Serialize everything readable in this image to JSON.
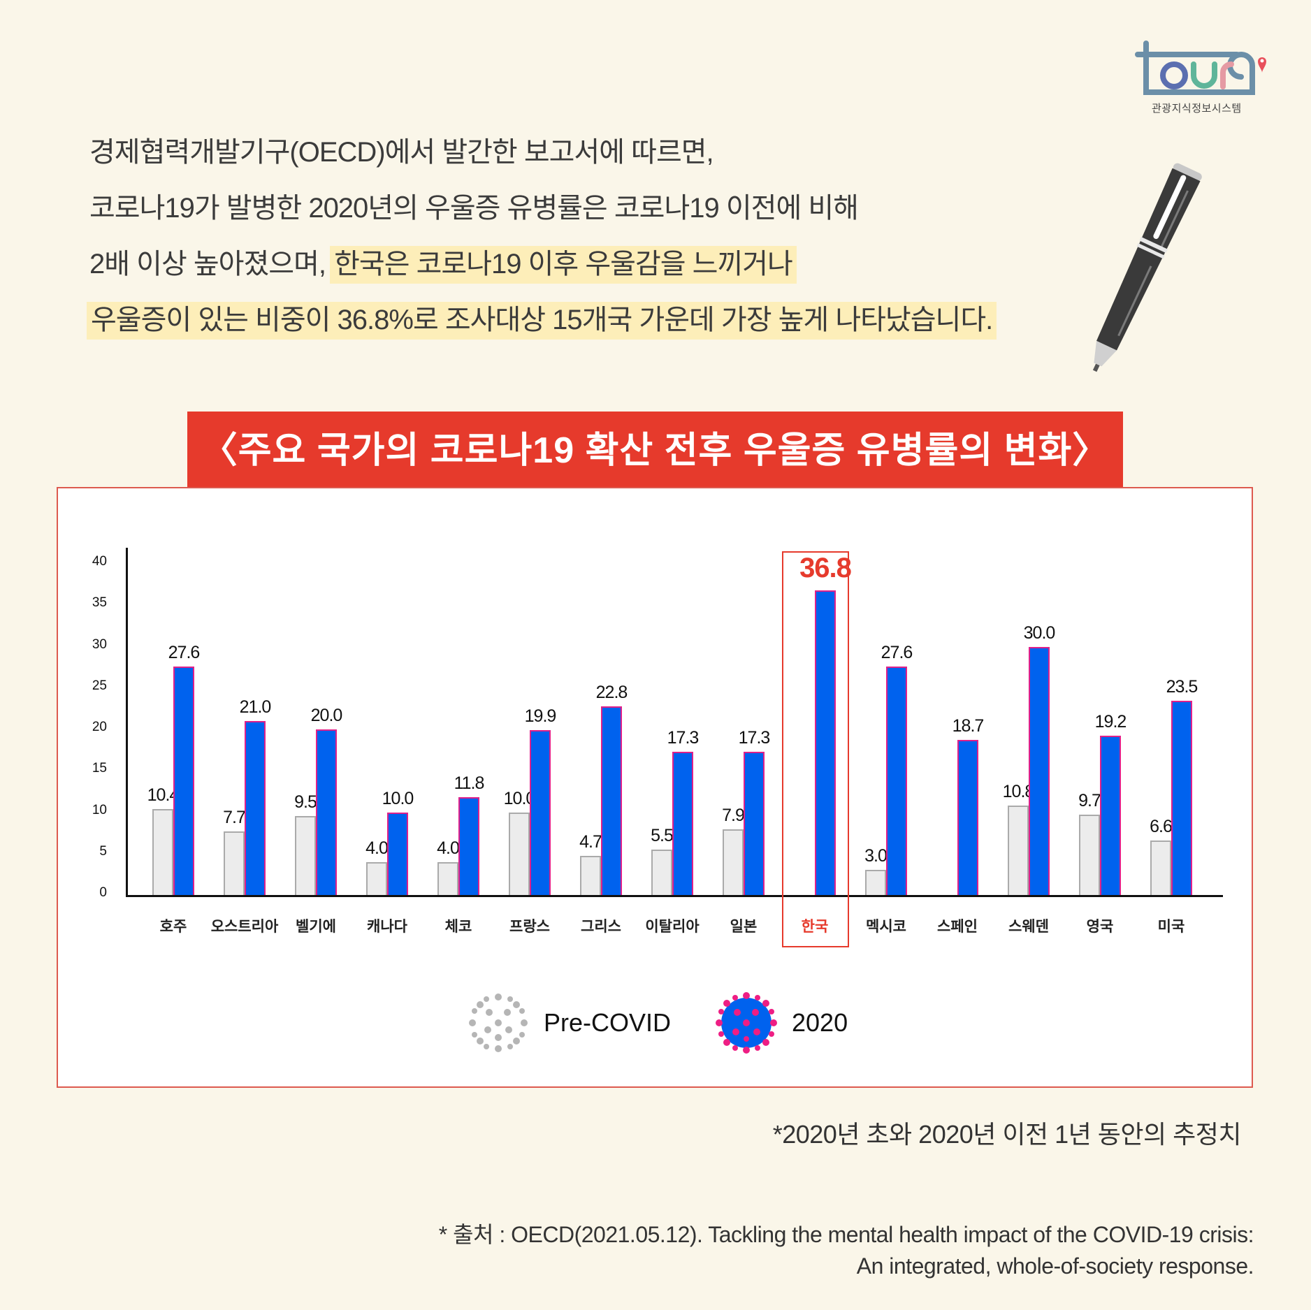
{
  "logo": {
    "text": "tour9",
    "subtitle": "관광지식정보시스템",
    "colors": {
      "frame": "#6b8fa8",
      "o": "#5b6fb0",
      "u": "#5fb59a",
      "r": "#e59aa3",
      "pin": "#e8505b"
    }
  },
  "intro": {
    "lines": [
      "경제협력개발기구(OECD)에서 발간한 보고서에 따르면,",
      "코로나19가 발병한 2020년의 우울증 유병률은 코로나19 이전에 비해",
      "2배 이상 높아졌으며, ",
      "한국은 코로나19 이후 우울감을 느끼거나",
      "우울증이 있는 비중이 36.8%로 조사대상 15개국 가운데 가장 높게 나타났습니다."
    ],
    "highlight_color": "#fdeeb9"
  },
  "chart_header": {
    "title": "〈주요 국가의 코로나19 확산 전후 우울증 유병률의 변화〉",
    "bg_color": "#e63a2c"
  },
  "chart_data": {
    "type": "bar",
    "title": "〈주요 국가의 코로나19 확산 전후 우울증 유병률의 변화〉",
    "xlabel": "",
    "ylabel": "",
    "ylim": [
      0,
      40
    ],
    "yticks": [
      0,
      5,
      10,
      15,
      20,
      25,
      30,
      35,
      40
    ],
    "grid": false,
    "legend_position": "bottom",
    "categories": [
      "호주",
      "오스트리아",
      "벨기에",
      "캐나다",
      "체코",
      "프랑스",
      "그리스",
      "이탈리아",
      "일본",
      "한국",
      "멕시코",
      "스페인",
      "스웨덴",
      "영국",
      "미국"
    ],
    "series": [
      {
        "name": "Pre-COVID",
        "color": "#ececec",
        "values": [
          10.4,
          7.7,
          9.5,
          4.0,
          4.0,
          10.0,
          4.7,
          5.5,
          7.9,
          null,
          3.0,
          null,
          10.8,
          9.7,
          6.6
        ]
      },
      {
        "name": "2020",
        "color": "#0062ee",
        "values": [
          27.6,
          21.0,
          20.0,
          10.0,
          11.8,
          19.9,
          22.8,
          17.3,
          17.3,
          36.8,
          27.6,
          18.7,
          30.0,
          19.2,
          23.5
        ]
      }
    ],
    "value_labels": {
      "pre": [
        "10.4",
        "7.7",
        "9.5",
        "4.0",
        "4.0",
        "10.0",
        "4.7",
        "5.5",
        "7.9",
        "",
        "3.0",
        "",
        "10.8",
        "9.7",
        "6.6"
      ],
      "y2020": [
        "27.6",
        "21.0",
        "20.0",
        "10.0",
        "11.8",
        "19.9",
        "22.8",
        "17.3",
        "17.3",
        "36.8",
        "27.6",
        "18.7",
        "30.0",
        "19.2",
        "23.5"
      ]
    },
    "highlight": {
      "category": "한국",
      "value": "36.8",
      "color": "#e63a2c"
    },
    "annotations": []
  },
  "legend": {
    "pre_label": "Pre-COVID",
    "y2020_label": "2020"
  },
  "footnote": "*2020년 초와 2020년 이전 1년 동안의 추정치",
  "source": {
    "line1": "* 출처 : OECD(2021.05.12). Tackling the mental health impact of the COVID-19 crisis:",
    "line2": "An integrated, whole-of-society response."
  }
}
